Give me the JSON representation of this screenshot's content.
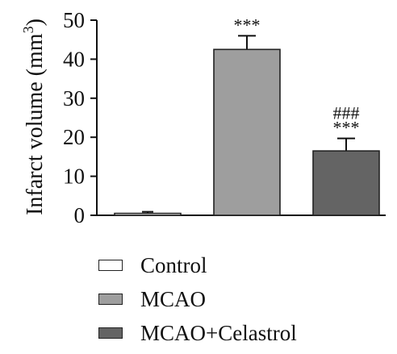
{
  "chart_data": {
    "type": "bar",
    "ylabel": "Infarct volume (mm",
    "ylabel_sup": "3",
    "ylabel_close": ")",
    "ylim": [
      0,
      50
    ],
    "yticks": [
      0,
      10,
      20,
      30,
      40,
      50
    ],
    "categories": [
      "Control",
      "MCAO",
      "MCAO+Celastrol"
    ],
    "values": [
      0.5,
      42.5,
      16.5
    ],
    "errors": [
      0.4,
      3.5,
      3.2
    ],
    "colors": [
      "#ffffff",
      "#9e9e9e",
      "#646464"
    ],
    "annotations": [
      [],
      [
        "***"
      ],
      [
        "###",
        "***"
      ]
    ],
    "grid": false,
    "legend_position": "bottom"
  }
}
